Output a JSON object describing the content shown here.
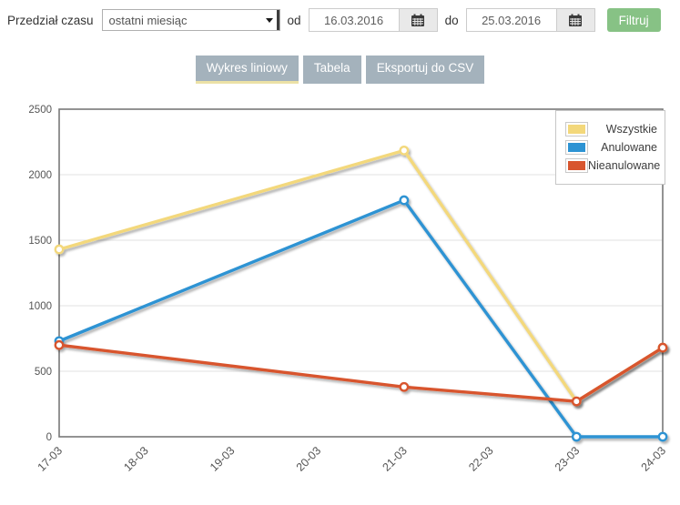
{
  "filter_bar": {
    "label": "Przedział czasu",
    "range_select": {
      "value": "ostatni miesiąc"
    },
    "from_label": "od",
    "from_value": "16.03.2016",
    "to_label": "do",
    "to_value": "25.03.2016",
    "filter_button": "Filtruj"
  },
  "tabs": [
    {
      "label": "Wykres liniowy",
      "active": true
    },
    {
      "label": "Tabela",
      "active": false
    },
    {
      "label": "Eksportuj do CSV",
      "active": false
    }
  ],
  "colors": {
    "filter_button_green": "#87c285",
    "tab_background": "#a4b2bc",
    "active_tab_underline": "#ece1a6",
    "plot_border": "#787878",
    "gridline": "#e2e2e2",
    "axis_text": "#555555"
  },
  "chart_data": {
    "type": "line",
    "title": "",
    "xlabel": "",
    "ylabel": "",
    "x_categories": [
      "17-03",
      "18-03",
      "19-03",
      "20-03",
      "21-03",
      "22-03",
      "23-03",
      "24-03"
    ],
    "y_ticks": [
      0,
      500,
      1000,
      1500,
      2000,
      2500
    ],
    "ylim": [
      0,
      2500
    ],
    "grid": true,
    "legend_position": "top-right",
    "series": [
      {
        "name": "Wszystkie",
        "color": "#f3d87b",
        "points": [
          {
            "x": "17-03",
            "y": 1430
          },
          {
            "x": "21-03",
            "y": 2185
          },
          {
            "x": "23-03",
            "y": 270
          },
          {
            "x": "24-03",
            "y": 680
          }
        ]
      },
      {
        "name": "Anulowane",
        "color": "#2d93d3",
        "points": [
          {
            "x": "17-03",
            "y": 730
          },
          {
            "x": "21-03",
            "y": 1805
          },
          {
            "x": "23-03",
            "y": 0
          },
          {
            "x": "24-03",
            "y": 0
          }
        ]
      },
      {
        "name": "Nieanulowane",
        "color": "#d8552e",
        "points": [
          {
            "x": "17-03",
            "y": 700
          },
          {
            "x": "21-03",
            "y": 380
          },
          {
            "x": "23-03",
            "y": 270
          },
          {
            "x": "24-03",
            "y": 680
          }
        ]
      }
    ]
  }
}
